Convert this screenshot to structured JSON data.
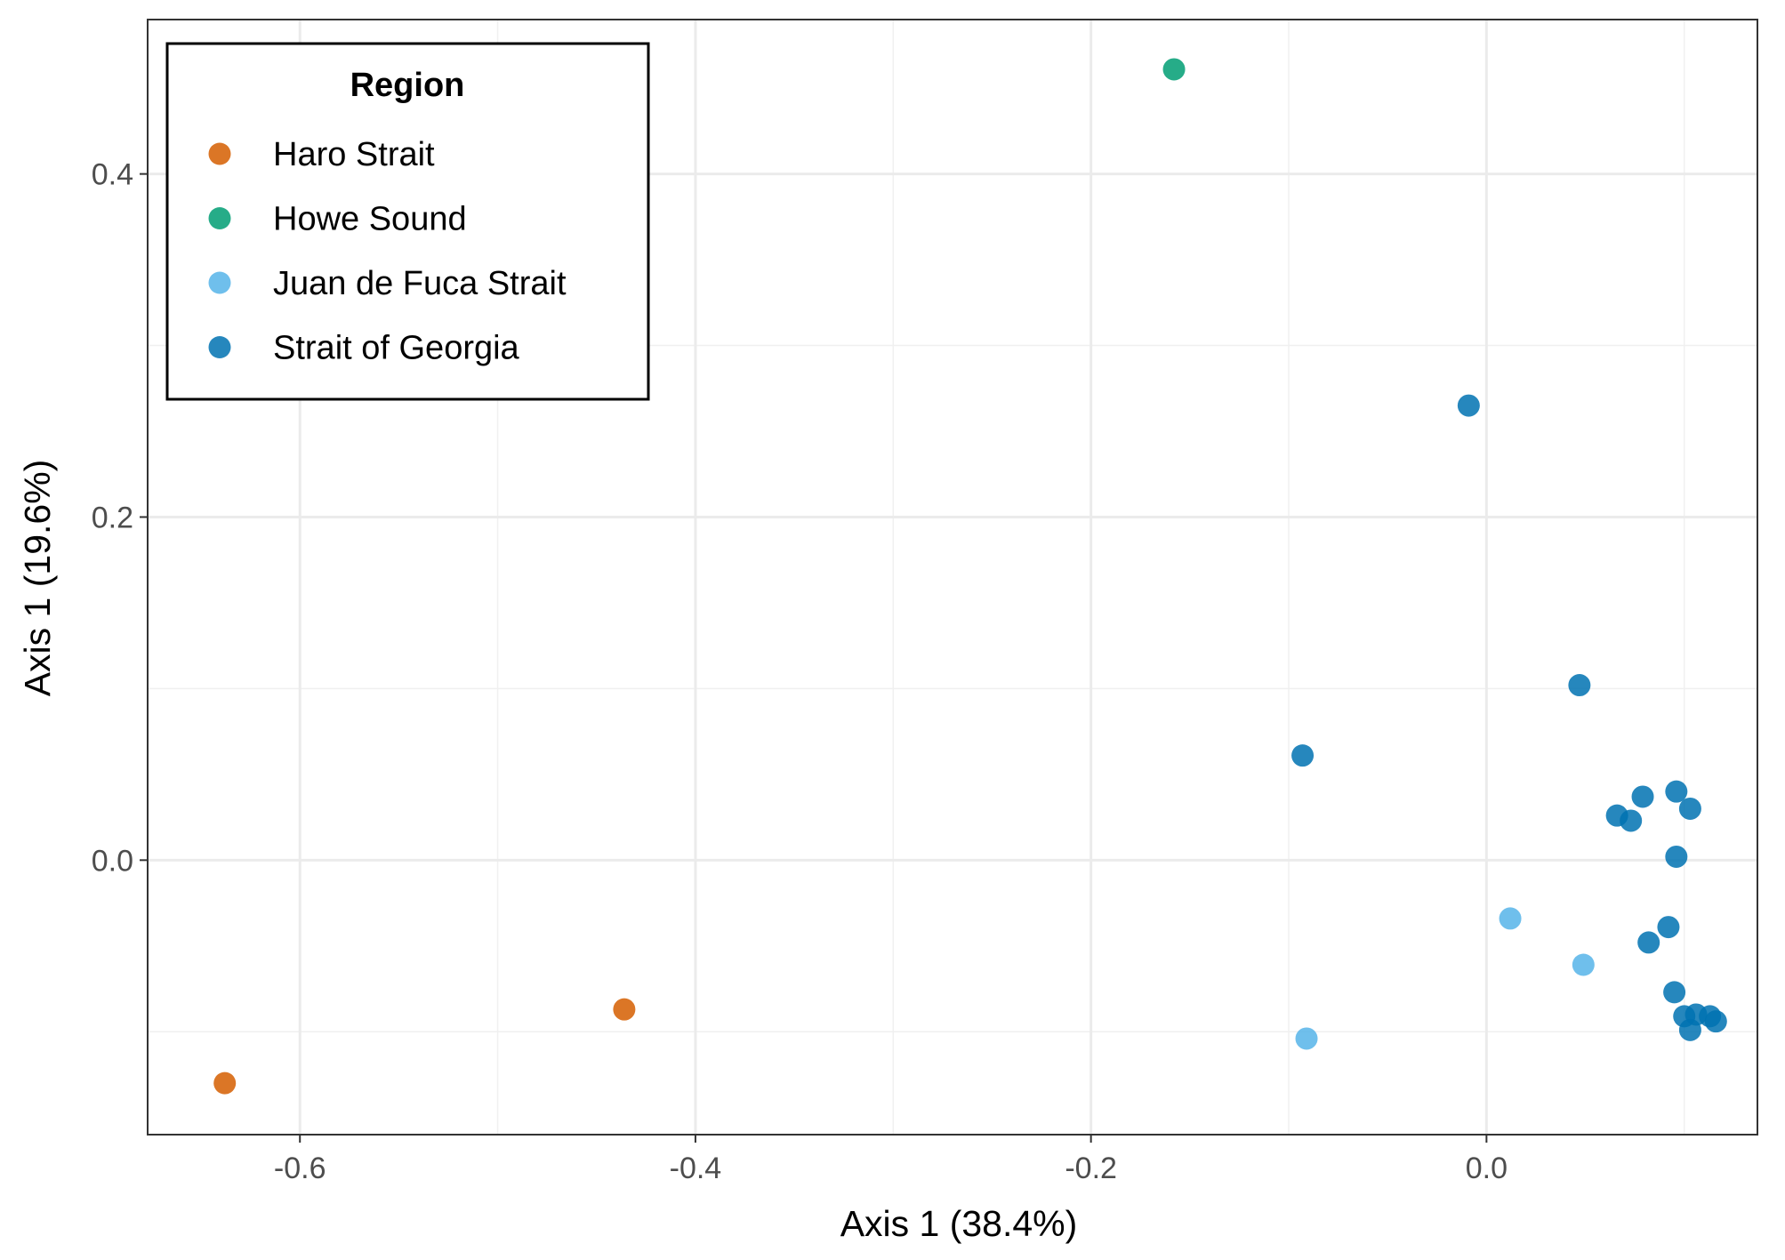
{
  "chart_data": {
    "type": "scatter",
    "xlabel": "Axis 1 (38.4%)",
    "ylabel": "Axis 1 (19.6%)",
    "xlim": [
      -0.677,
      0.137
    ],
    "ylim": [
      -0.16,
      0.49
    ],
    "x_ticks": [
      {
        "value": -0.6,
        "label": "-0.6"
      },
      {
        "value": -0.4,
        "label": "-0.4"
      },
      {
        "value": -0.2,
        "label": "-0.2"
      },
      {
        "value": 0.0,
        "label": "0.0"
      }
    ],
    "y_ticks": [
      {
        "value": 0.0,
        "label": "0.0"
      },
      {
        "value": 0.2,
        "label": "0.2"
      },
      {
        "value": 0.4,
        "label": "0.4"
      }
    ],
    "grid": true,
    "legend": {
      "title": "Region",
      "position": "top-left"
    },
    "series": [
      {
        "name": "Haro Strait",
        "color": "#D55E00",
        "points": [
          [
            -0.638,
            -0.13
          ],
          [
            -0.436,
            -0.087
          ]
        ]
      },
      {
        "name": "Howe Sound",
        "color": "#009E73",
        "points": [
          [
            -0.158,
            0.461
          ]
        ]
      },
      {
        "name": "Juan de Fuca Strait",
        "color": "#56B4E9",
        "points": [
          [
            0.012,
            -0.034
          ],
          [
            0.049,
            -0.061
          ],
          [
            -0.091,
            -0.104
          ]
        ]
      },
      {
        "name": "Strait of Georgia",
        "color": "#0072B2",
        "points": [
          [
            -0.009,
            0.265
          ],
          [
            0.047,
            0.102
          ],
          [
            -0.093,
            0.061
          ],
          [
            0.079,
            0.037
          ],
          [
            0.096,
            0.04
          ],
          [
            0.103,
            0.03
          ],
          [
            0.066,
            0.026
          ],
          [
            0.073,
            0.023
          ],
          [
            0.096,
            0.002
          ],
          [
            0.092,
            -0.039
          ],
          [
            0.082,
            -0.048
          ],
          [
            0.095,
            -0.077
          ],
          [
            0.1,
            -0.091
          ],
          [
            0.106,
            -0.09
          ],
          [
            0.113,
            -0.091
          ],
          [
            0.116,
            -0.094
          ],
          [
            0.103,
            -0.099
          ]
        ]
      }
    ]
  }
}
